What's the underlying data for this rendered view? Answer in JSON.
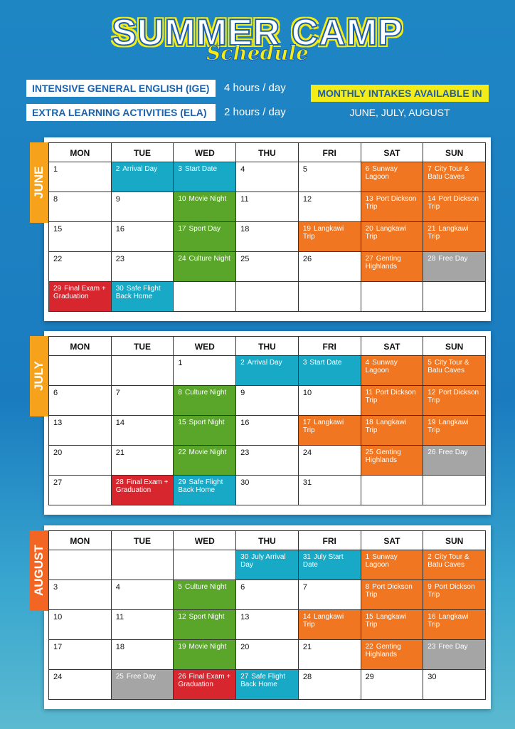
{
  "header": {
    "title": "SUMMER CAMP",
    "subtitle": "Schedule"
  },
  "programs": [
    {
      "name": "INTENSIVE GENERAL ENGLISH (IGE)",
      "hours": "4 hours / day"
    },
    {
      "name": "EXTRA LEARNING ACTIVITIES (ELA)",
      "hours": "2 hours / day"
    }
  ],
  "intake": {
    "label": "MONTHLY INTAKES AVAILABLE IN",
    "months": "JUNE, JULY, AUGUST"
  },
  "weekdays": [
    "MON",
    "TUE",
    "WED",
    "THU",
    "FRI",
    "SAT",
    "SUN"
  ],
  "calendars": [
    {
      "month": "JUNE",
      "tab_color": "#f7a21b",
      "weeks": [
        [
          {
            "day": 1
          },
          {
            "day": 2,
            "event": "Arrival Day",
            "color": "#17a9c6"
          },
          {
            "day": 3,
            "event": "Start Date",
            "color": "#17a9c6"
          },
          {
            "day": 4
          },
          {
            "day": 5
          },
          {
            "day": 6,
            "event": "Sunway Lagoon",
            "color": "#f07622"
          },
          {
            "day": 7,
            "event": "City Tour & Batu Caves",
            "color": "#f07622"
          }
        ],
        [
          {
            "day": 8
          },
          {
            "day": 9
          },
          {
            "day": 10,
            "event": "Movie Night",
            "color": "#5aa62b"
          },
          {
            "day": 11
          },
          {
            "day": 12
          },
          {
            "day": 13,
            "event": "Port Dickson Trip",
            "color": "#f07622"
          },
          {
            "day": 14,
            "event": "Port Dickson Trip",
            "color": "#f07622"
          }
        ],
        [
          {
            "day": 15
          },
          {
            "day": 16
          },
          {
            "day": 17,
            "event": "Sport Day",
            "color": "#5aa62b"
          },
          {
            "day": 18
          },
          {
            "day": 19,
            "event": "Langkawi Trip",
            "color": "#f07622"
          },
          {
            "day": 20,
            "event": "Langkawi Trip",
            "color": "#f07622"
          },
          {
            "day": 21,
            "event": "Langkawi Trip",
            "color": "#f07622"
          }
        ],
        [
          {
            "day": 22
          },
          {
            "day": 23
          },
          {
            "day": 24,
            "event": "Culture Night",
            "color": "#5aa62b"
          },
          {
            "day": 25
          },
          {
            "day": 26
          },
          {
            "day": 27,
            "event": "Genting Highlands",
            "color": "#f07622"
          },
          {
            "day": 28,
            "event": "Free Day",
            "color": "#a5a5a5"
          }
        ],
        [
          {
            "day": 29,
            "event": "Final Exam + Graduation",
            "color": "#d8262f"
          },
          {
            "day": 30,
            "event": "Safe Flight Back Home",
            "color": "#17a9c6"
          },
          null,
          null,
          null,
          null,
          null
        ]
      ]
    },
    {
      "month": "JULY",
      "tab_color": "#f7a21b",
      "weeks": [
        [
          null,
          null,
          {
            "day": 1
          },
          {
            "day": 2,
            "event": "Arrival Day",
            "color": "#17a9c6"
          },
          {
            "day": 3,
            "event": "Start Date",
            "color": "#17a9c6"
          },
          {
            "day": 4,
            "event": "Sunway Lagoon",
            "color": "#f07622"
          },
          {
            "day": 5,
            "event": "City Tour & Batu Caves",
            "color": "#f07622"
          }
        ],
        [
          {
            "day": 6
          },
          {
            "day": 7
          },
          {
            "day": 8,
            "event": "Culture Night",
            "color": "#5aa62b"
          },
          {
            "day": 9
          },
          {
            "day": 10
          },
          {
            "day": 11,
            "event": "Port Dickson Trip",
            "color": "#f07622"
          },
          {
            "day": 12,
            "event": "Port Dickson Trip",
            "color": "#f07622"
          }
        ],
        [
          {
            "day": 13
          },
          {
            "day": 14
          },
          {
            "day": 15,
            "event": "Sport Night",
            "color": "#5aa62b"
          },
          {
            "day": 16
          },
          {
            "day": 17,
            "event": "Langkawi Trip",
            "color": "#f07622"
          },
          {
            "day": 18,
            "event": "Langkawi Trip",
            "color": "#f07622"
          },
          {
            "day": 19,
            "event": "Langkawi Trip",
            "color": "#f07622"
          }
        ],
        [
          {
            "day": 20
          },
          {
            "day": 21
          },
          {
            "day": 22,
            "event": "Movie Night",
            "color": "#5aa62b"
          },
          {
            "day": 23
          },
          {
            "day": 24
          },
          {
            "day": 25,
            "event": "Genting Highlands",
            "color": "#f07622"
          },
          {
            "day": 26,
            "event": "Free Day",
            "color": "#a5a5a5"
          }
        ],
        [
          {
            "day": 27
          },
          {
            "day": 28,
            "event": "Final Exam + Graduation",
            "color": "#d8262f"
          },
          {
            "day": 29,
            "event": "Safe Flight Back Home",
            "color": "#17a9c6"
          },
          {
            "day": 30
          },
          {
            "day": 31
          },
          null,
          null
        ]
      ]
    },
    {
      "month": "AUGUST",
      "tab_color": "#f26522",
      "weeks": [
        [
          null,
          null,
          null,
          {
            "day": 30,
            "event": "July Arrival Day",
            "color": "#17a9c6"
          },
          {
            "day": 31,
            "event": "July Start Date",
            "color": "#17a9c6"
          },
          {
            "day": 1,
            "event": "Sunway Lagoon",
            "color": "#f07622"
          },
          {
            "day": 2,
            "event": "City Tour & Batu Caves",
            "color": "#f07622"
          }
        ],
        [
          {
            "day": 3
          },
          {
            "day": 4
          },
          {
            "day": 5,
            "event": "Culture Night",
            "color": "#5aa62b"
          },
          {
            "day": 6
          },
          {
            "day": 7
          },
          {
            "day": 8,
            "event": "Port Dickson Trip",
            "color": "#f07622"
          },
          {
            "day": 9,
            "event": "Port Dickson Trip",
            "color": "#f07622"
          }
        ],
        [
          {
            "day": 10
          },
          {
            "day": 11
          },
          {
            "day": 12,
            "event": "Sport Night",
            "color": "#5aa62b"
          },
          {
            "day": 13
          },
          {
            "day": 14,
            "event": "Langkawi Trip",
            "color": "#f07622"
          },
          {
            "day": 15,
            "event": "Langkawi Trip",
            "color": "#f07622"
          },
          {
            "day": 16,
            "event": "Langkawi Trip",
            "color": "#f07622"
          }
        ],
        [
          {
            "day": 17
          },
          {
            "day": 18
          },
          {
            "day": 19,
            "event": "Movie Night",
            "color": "#5aa62b"
          },
          {
            "day": 20
          },
          {
            "day": 21
          },
          {
            "day": 22,
            "event": "Genting Highlands",
            "color": "#f07622"
          },
          {
            "day": 23,
            "event": "Free Day",
            "color": "#a5a5a5"
          }
        ],
        [
          {
            "day": 24
          },
          {
            "day": 25,
            "event": "Free Day",
            "color": "#a5a5a5"
          },
          {
            "day": 26,
            "event": "Final Exam + Graduation",
            "color": "#d8262f"
          },
          {
            "day": 27,
            "event": "Safe Flight Back Home",
            "color": "#17a9c6"
          },
          {
            "day": 28
          },
          {
            "day": 29
          },
          {
            "day": 30
          }
        ]
      ]
    }
  ]
}
